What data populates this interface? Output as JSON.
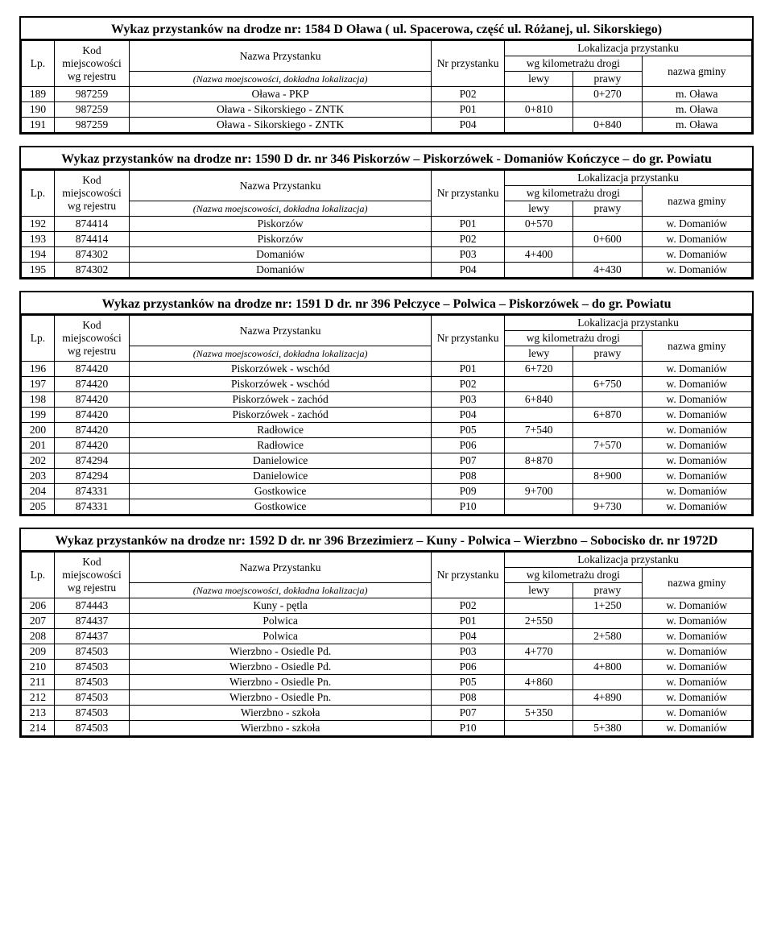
{
  "header_labels": {
    "lp": "Lp.",
    "kod": "Kod miejscowości wg rejestru",
    "nazwa": "Nazwa Przystanku",
    "nazwa_sub": "(Nazwa moejscowości, dokładna lokalizacja)",
    "nr": "Nr przystanku",
    "lokalizacja": "Lokalizacja przystanku",
    "wg_km": "wg kilometrażu drogi",
    "lewy": "lewy",
    "prawy": "prawy",
    "gmina": "nazwa gminy"
  },
  "sections": [
    {
      "title": "Wykaz przystanków na drodze nr: 1584 D Oława ( ul. Spacerowa, część ul. Różanej, ul. Sikorskiego)",
      "rows": [
        [
          "189",
          "987259",
          "Oława - PKP",
          "P02",
          "",
          "0+270",
          "m. Oława"
        ],
        [
          "190",
          "987259",
          "Oława - Sikorskiego - ZNTK",
          "P01",
          "0+810",
          "",
          "m. Oława"
        ],
        [
          "191",
          "987259",
          "Oława - Sikorskiego - ZNTK",
          "P04",
          "",
          "0+840",
          "m. Oława"
        ]
      ]
    },
    {
      "title": "Wykaz przystanków na drodze nr: 1590 D dr. nr 346 Piskorzów – Piskorzówek - Domaniów Kończyce – do gr. Powiatu",
      "rows": [
        [
          "192",
          "874414",
          "Piskorzów",
          "P01",
          "0+570",
          "",
          "w. Domaniów"
        ],
        [
          "193",
          "874414",
          "Piskorzów",
          "P02",
          "",
          "0+600",
          "w. Domaniów"
        ],
        [
          "194",
          "874302",
          "Domaniów",
          "P03",
          "4+400",
          "",
          "w. Domaniów"
        ],
        [
          "195",
          "874302",
          "Domaniów",
          "P04",
          "",
          "4+430",
          "w. Domaniów"
        ]
      ]
    },
    {
      "title": "Wykaz przystanków na drodze nr: 1591 D dr. nr 396 Pełczyce – Polwica – Piskorzówek – do gr. Powiatu",
      "rows": [
        [
          "196",
          "874420",
          "Piskorzówek - wschód",
          "P01",
          "6+720",
          "",
          "w. Domaniów"
        ],
        [
          "197",
          "874420",
          "Piskorzówek - wschód",
          "P02",
          "",
          "6+750",
          "w. Domaniów"
        ],
        [
          "198",
          "874420",
          "Piskorzówek - zachód",
          "P03",
          "6+840",
          "",
          "w. Domaniów"
        ],
        [
          "199",
          "874420",
          "Piskorzówek - zachód",
          "P04",
          "",
          "6+870",
          "w. Domaniów"
        ],
        [
          "200",
          "874420",
          "Radłowice",
          "P05",
          "7+540",
          "",
          "w. Domaniów"
        ],
        [
          "201",
          "874420",
          "Radłowice",
          "P06",
          "",
          "7+570",
          "w. Domaniów"
        ],
        [
          "202",
          "874294",
          "Danielowice",
          "P07",
          "8+870",
          "",
          "w. Domaniów"
        ],
        [
          "203",
          "874294",
          "Danielowice",
          "P08",
          "",
          "8+900",
          "w. Domaniów"
        ],
        [
          "204",
          "874331",
          "Gostkowice",
          "P09",
          "9+700",
          "",
          "w. Domaniów"
        ],
        [
          "205",
          "874331",
          "Gostkowice",
          "P10",
          "",
          "9+730",
          "w. Domaniów"
        ]
      ]
    },
    {
      "title": "Wykaz przystanków na drodze nr: 1592 D dr. nr 396 Brzezimierz – Kuny - Polwica – Wierzbno – Sobocisko dr. nr 1972D",
      "rows": [
        [
          "206",
          "874443",
          "Kuny - pętla",
          "P02",
          "",
          "1+250",
          "w. Domaniów"
        ],
        [
          "207",
          "874437",
          "Polwica",
          "P01",
          "2+550",
          "",
          "w. Domaniów"
        ],
        [
          "208",
          "874437",
          "Polwica",
          "P04",
          "",
          "2+580",
          "w. Domaniów"
        ],
        [
          "209",
          "874503",
          "Wierzbno - Osiedle Pd.",
          "P03",
          "4+770",
          "",
          "w. Domaniów"
        ],
        [
          "210",
          "874503",
          "Wierzbno - Osiedle Pd.",
          "P06",
          "",
          "4+800",
          "w. Domaniów"
        ],
        [
          "211",
          "874503",
          "Wierzbno - Osiedle Pn.",
          "P05",
          "4+860",
          "",
          "w. Domaniów"
        ],
        [
          "212",
          "874503",
          "Wierzbno - Osiedle Pn.",
          "P08",
          "",
          "4+890",
          "w. Domaniów"
        ],
        [
          "213",
          "874503",
          "Wierzbno - szkoła",
          "P07",
          "5+350",
          "",
          "w. Domaniów"
        ],
        [
          "214",
          "874503",
          "Wierzbno - szkoła",
          "P10",
          "",
          "5+380",
          "w. Domaniów"
        ]
      ]
    }
  ]
}
